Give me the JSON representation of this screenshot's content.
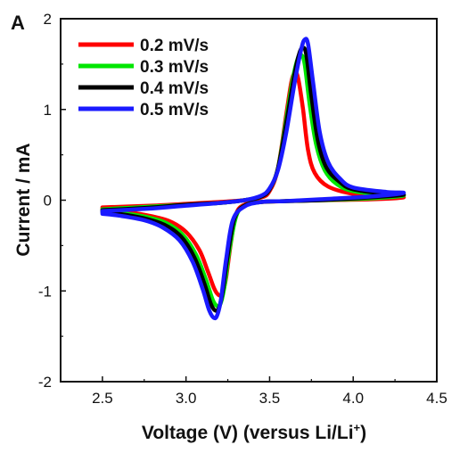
{
  "panel_label": "A",
  "chart_data": {
    "type": "line",
    "title": "",
    "xlabel": "Voltage (V) (versus Li/Li",
    "xlabel_superscript": "+",
    "xlabel_suffix": ")",
    "ylabel": "Current / mA",
    "xlim": [
      2.25,
      4.5
    ],
    "ylim": [
      -2,
      2
    ],
    "x_ticks": [
      2.5,
      3.0,
      3.5,
      4.0,
      4.5
    ],
    "x_tick_labels": [
      "2.5",
      "3.0",
      "3.5",
      "4.0",
      "4.5"
    ],
    "y_ticks": [
      -2,
      -1,
      0,
      1,
      2
    ],
    "y_tick_labels": [
      "-2",
      "-1",
      "0",
      "1",
      "2"
    ],
    "grid": false,
    "legend_position": "top-left",
    "series": [
      {
        "name": "0.2 mV/s",
        "color": "#ff0000",
        "anodic": [
          [
            2.5,
            -0.08
          ],
          [
            2.8,
            -0.06
          ],
          [
            3.0,
            -0.04
          ],
          [
            3.2,
            -0.02
          ],
          [
            3.35,
            0.0
          ],
          [
            3.45,
            0.03
          ],
          [
            3.5,
            0.1
          ],
          [
            3.55,
            0.35
          ],
          [
            3.6,
            0.95
          ],
          [
            3.63,
            1.3
          ],
          [
            3.65,
            1.4
          ],
          [
            3.67,
            1.35
          ],
          [
            3.7,
            1.0
          ],
          [
            3.73,
            0.55
          ],
          [
            3.77,
            0.3
          ],
          [
            3.85,
            0.15
          ],
          [
            4.0,
            0.07
          ],
          [
            4.2,
            0.04
          ],
          [
            4.3,
            0.03
          ]
        ],
        "cathodic": [
          [
            4.3,
            0.03
          ],
          [
            4.1,
            0.01
          ],
          [
            3.8,
            0.0
          ],
          [
            3.6,
            -0.01
          ],
          [
            3.45,
            -0.02
          ],
          [
            3.35,
            -0.05
          ],
          [
            3.3,
            -0.15
          ],
          [
            3.27,
            -0.45
          ],
          [
            3.24,
            -0.85
          ],
          [
            3.22,
            -1.02
          ],
          [
            3.2,
            -1.05
          ],
          [
            3.17,
            -0.98
          ],
          [
            3.13,
            -0.78
          ],
          [
            3.08,
            -0.55
          ],
          [
            3.0,
            -0.35
          ],
          [
            2.9,
            -0.23
          ],
          [
            2.75,
            -0.16
          ],
          [
            2.6,
            -0.12
          ],
          [
            2.5,
            -0.1
          ]
        ]
      },
      {
        "name": "0.3 mV/s",
        "color": "#00e600",
        "anodic": [
          [
            2.5,
            -0.1
          ],
          [
            2.8,
            -0.07
          ],
          [
            3.0,
            -0.05
          ],
          [
            3.2,
            -0.03
          ],
          [
            3.35,
            0.0
          ],
          [
            3.45,
            0.04
          ],
          [
            3.5,
            0.12
          ],
          [
            3.55,
            0.35
          ],
          [
            3.6,
            0.9
          ],
          [
            3.64,
            1.35
          ],
          [
            3.67,
            1.57
          ],
          [
            3.69,
            1.6
          ],
          [
            3.71,
            1.5
          ],
          [
            3.74,
            1.05
          ],
          [
            3.78,
            0.6
          ],
          [
            3.83,
            0.33
          ],
          [
            3.9,
            0.18
          ],
          [
            4.0,
            0.1
          ],
          [
            4.2,
            0.06
          ],
          [
            4.3,
            0.05
          ]
        ],
        "cathodic": [
          [
            4.3,
            0.05
          ],
          [
            4.1,
            0.02
          ],
          [
            3.8,
            0.0
          ],
          [
            3.6,
            -0.01
          ],
          [
            3.45,
            -0.02
          ],
          [
            3.35,
            -0.06
          ],
          [
            3.3,
            -0.18
          ],
          [
            3.26,
            -0.55
          ],
          [
            3.23,
            -0.95
          ],
          [
            3.21,
            -1.12
          ],
          [
            3.19,
            -1.17
          ],
          [
            3.16,
            -1.1
          ],
          [
            3.12,
            -0.88
          ],
          [
            3.06,
            -0.6
          ],
          [
            2.98,
            -0.38
          ],
          [
            2.88,
            -0.25
          ],
          [
            2.75,
            -0.18
          ],
          [
            2.6,
            -0.14
          ],
          [
            2.5,
            -0.12
          ]
        ]
      },
      {
        "name": "0.4 mV/s",
        "color": "#000000",
        "anodic": [
          [
            2.5,
            -0.11
          ],
          [
            2.8,
            -0.08
          ],
          [
            3.0,
            -0.05
          ],
          [
            3.2,
            -0.03
          ],
          [
            3.35,
            0.0
          ],
          [
            3.45,
            0.04
          ],
          [
            3.5,
            0.12
          ],
          [
            3.55,
            0.35
          ],
          [
            3.6,
            0.85
          ],
          [
            3.65,
            1.4
          ],
          [
            3.68,
            1.63
          ],
          [
            3.7,
            1.68
          ],
          [
            3.72,
            1.6
          ],
          [
            3.75,
            1.15
          ],
          [
            3.79,
            0.65
          ],
          [
            3.84,
            0.36
          ],
          [
            3.92,
            0.2
          ],
          [
            4.0,
            0.12
          ],
          [
            4.2,
            0.07
          ],
          [
            4.3,
            0.06
          ]
        ],
        "cathodic": [
          [
            4.3,
            0.06
          ],
          [
            4.1,
            0.03
          ],
          [
            3.8,
            0.0
          ],
          [
            3.6,
            -0.01
          ],
          [
            3.45,
            -0.02
          ],
          [
            3.35,
            -0.06
          ],
          [
            3.29,
            -0.2
          ],
          [
            3.25,
            -0.6
          ],
          [
            3.22,
            -1.0
          ],
          [
            3.2,
            -1.17
          ],
          [
            3.18,
            -1.22
          ],
          [
            3.15,
            -1.15
          ],
          [
            3.11,
            -0.92
          ],
          [
            3.05,
            -0.63
          ],
          [
            2.97,
            -0.4
          ],
          [
            2.87,
            -0.27
          ],
          [
            2.75,
            -0.2
          ],
          [
            2.6,
            -0.15
          ],
          [
            2.5,
            -0.13
          ]
        ]
      },
      {
        "name": "0.5 mV/s",
        "color": "#1a1aff",
        "anodic": [
          [
            2.5,
            -0.12
          ],
          [
            2.8,
            -0.09
          ],
          [
            3.0,
            -0.06
          ],
          [
            3.2,
            -0.03
          ],
          [
            3.35,
            0.0
          ],
          [
            3.45,
            0.05
          ],
          [
            3.5,
            0.13
          ],
          [
            3.55,
            0.33
          ],
          [
            3.6,
            0.75
          ],
          [
            3.65,
            1.3
          ],
          [
            3.69,
            1.67
          ],
          [
            3.71,
            1.77
          ],
          [
            3.73,
            1.72
          ],
          [
            3.76,
            1.3
          ],
          [
            3.8,
            0.75
          ],
          [
            3.85,
            0.42
          ],
          [
            3.92,
            0.24
          ],
          [
            4.0,
            0.14
          ],
          [
            4.2,
            0.09
          ],
          [
            4.3,
            0.08
          ]
        ],
        "cathodic": [
          [
            4.3,
            0.08
          ],
          [
            4.1,
            0.04
          ],
          [
            3.8,
            0.01
          ],
          [
            3.6,
            -0.01
          ],
          [
            3.45,
            -0.02
          ],
          [
            3.35,
            -0.07
          ],
          [
            3.28,
            -0.22
          ],
          [
            3.24,
            -0.65
          ],
          [
            3.21,
            -1.08
          ],
          [
            3.19,
            -1.25
          ],
          [
            3.17,
            -1.3
          ],
          [
            3.14,
            -1.22
          ],
          [
            3.1,
            -0.98
          ],
          [
            3.04,
            -0.68
          ],
          [
            2.96,
            -0.44
          ],
          [
            2.86,
            -0.3
          ],
          [
            2.75,
            -0.22
          ],
          [
            2.6,
            -0.17
          ],
          [
            2.5,
            -0.15
          ]
        ]
      }
    ]
  }
}
